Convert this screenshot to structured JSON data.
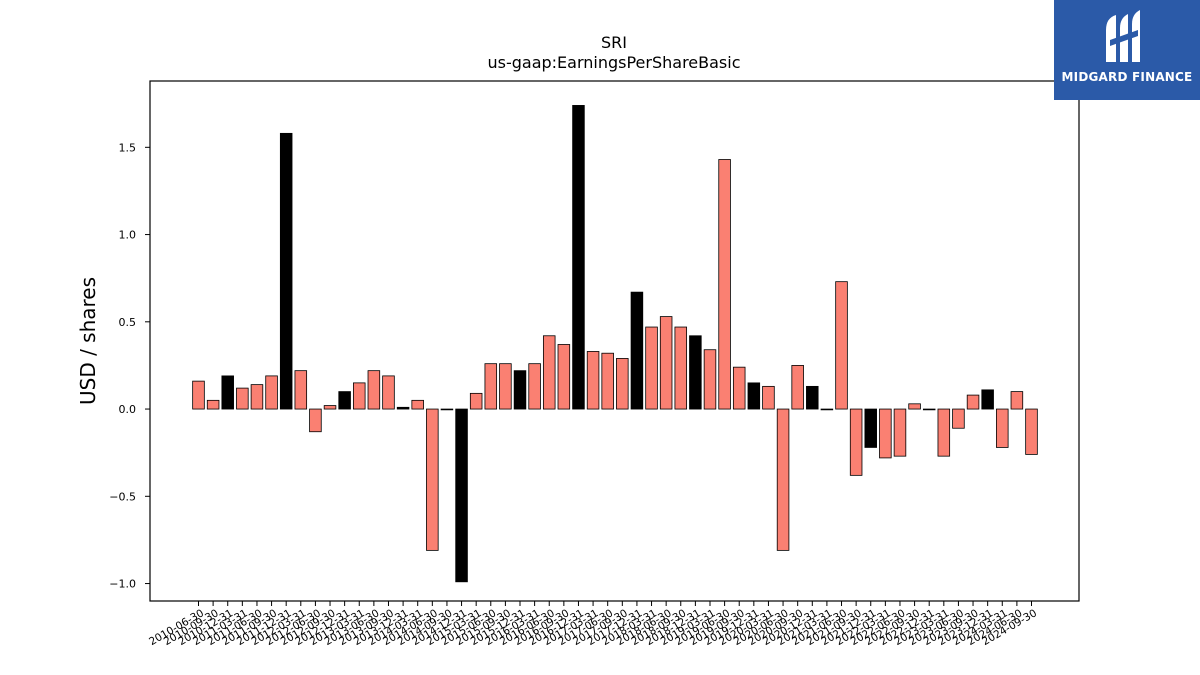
{
  "chart_data": {
    "type": "bar",
    "title": "SRI",
    "subtitle": "us-gaap:EarningsPerShareBasic",
    "ylabel": "USD / shares",
    "xlabel": "",
    "ylim": [
      -1.1,
      1.88
    ],
    "yticks": [
      -1.0,
      -0.5,
      0.0,
      0.5,
      1.0,
      1.5
    ],
    "grid": false,
    "legend": "none",
    "colors": {
      "highlight": "#000000",
      "normal": "#fa8072",
      "edge": "#000000"
    },
    "categories": [
      "2010-06-30",
      "2010-09-30",
      "2010-12-31",
      "2011-03-31",
      "2011-06-30",
      "2011-09-30",
      "2011-12-31",
      "2012-03-31",
      "2012-06-30",
      "2012-09-30",
      "2012-12-31",
      "2013-03-31",
      "2013-06-30",
      "2013-09-30",
      "2013-12-31",
      "2014-03-31",
      "2014-06-30",
      "2014-09-30",
      "2014-12-31",
      "2015-03-31",
      "2015-06-30",
      "2015-09-30",
      "2015-12-31",
      "2016-03-31",
      "2016-06-30",
      "2016-09-30",
      "2016-12-31",
      "2017-03-31",
      "2017-06-30",
      "2017-09-30",
      "2017-12-31",
      "2018-03-31",
      "2018-06-30",
      "2018-09-30",
      "2018-12-31",
      "2019-03-31",
      "2019-06-30",
      "2019-09-30",
      "2019-12-31",
      "2020-03-31",
      "2020-06-30",
      "2020-09-30",
      "2020-12-31",
      "2021-03-31",
      "2021-06-30",
      "2021-09-30",
      "2021-12-31",
      "2022-03-31",
      "2022-06-30",
      "2022-09-30",
      "2022-12-31",
      "2023-03-31",
      "2023-06-30",
      "2023-09-30",
      "2023-12-31",
      "2024-03-31",
      "2024-06-30",
      "2024-09-30"
    ],
    "values": [
      0.16,
      0.05,
      0.19,
      0.12,
      0.14,
      0.19,
      1.58,
      0.22,
      -0.13,
      0.02,
      0.1,
      0.15,
      0.22,
      0.19,
      0.01,
      0.05,
      -0.81,
      0.0,
      -0.99,
      0.09,
      0.26,
      0.26,
      0.22,
      0.26,
      0.42,
      0.37,
      1.74,
      0.33,
      0.32,
      0.29,
      0.67,
      0.47,
      0.53,
      0.47,
      0.42,
      0.34,
      1.43,
      0.24,
      0.15,
      0.13,
      -0.81,
      0.25,
      0.13,
      0.0,
      0.73,
      -0.38,
      -0.22,
      -0.28,
      -0.27,
      0.03,
      0.0,
      -0.27,
      -0.11,
      0.08,
      0.11,
      -0.22,
      0.1,
      -0.26
    ],
    "highlighted": [
      false,
      false,
      true,
      false,
      false,
      false,
      true,
      false,
      false,
      false,
      true,
      false,
      false,
      false,
      true,
      false,
      false,
      false,
      true,
      false,
      false,
      false,
      true,
      false,
      false,
      false,
      true,
      false,
      false,
      false,
      true,
      false,
      false,
      false,
      true,
      false,
      false,
      false,
      true,
      false,
      false,
      false,
      true,
      false,
      false,
      false,
      true,
      false,
      false,
      false,
      true,
      false,
      false,
      false,
      true,
      false,
      false,
      false
    ]
  },
  "logo": {
    "text": "MIDGARD FINANCE"
  }
}
